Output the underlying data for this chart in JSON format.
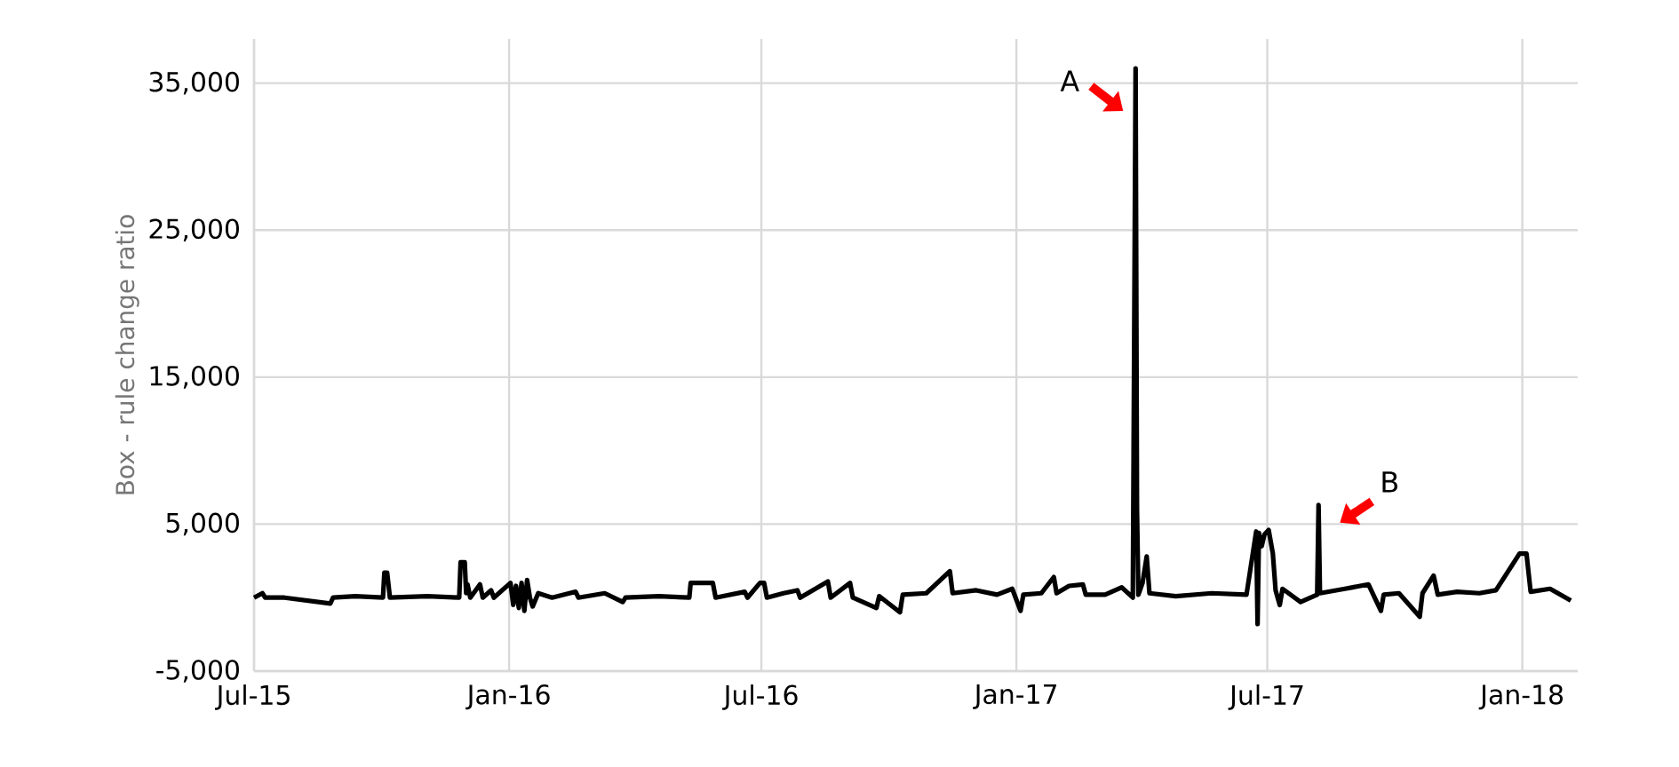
{
  "chart_data": {
    "type": "line",
    "ylabel": "Box - rule change ratio",
    "color": "#000000",
    "xlim": [
      "2015-07-01",
      "2018-02-10"
    ],
    "ylim": [
      -5000,
      38000
    ],
    "xticks": [
      {
        "value": "2015-07-01",
        "label": "Jul-15"
      },
      {
        "value": "2016-01-01",
        "label": "Jan-16"
      },
      {
        "value": "2016-07-01",
        "label": "Jul-16"
      },
      {
        "value": "2017-01-01",
        "label": "Jan-17"
      },
      {
        "value": "2017-07-01",
        "label": "Jul-17"
      },
      {
        "value": "2018-01-01",
        "label": "Jan-18"
      }
    ],
    "yticks": [
      {
        "value": -5000,
        "label": "-5,000"
      },
      {
        "value": 5000,
        "label": "5,000"
      },
      {
        "value": 15000,
        "label": "15,000"
      },
      {
        "value": 25000,
        "label": "25,000"
      },
      {
        "value": 35000,
        "label": "35,000"
      }
    ],
    "grid": true,
    "marker": "none",
    "line_style": "solid",
    "x": [
      "2015-07-01",
      "2015-07-07",
      "2015-07-09",
      "2015-07-23",
      "2015-08-25",
      "2015-08-27",
      "2015-09-12",
      "2015-10-02",
      "2015-10-03",
      "2015-10-05",
      "2015-10-07",
      "2015-11-03",
      "2015-11-26",
      "2015-11-27",
      "2015-11-30",
      "2015-12-01",
      "2015-12-02",
      "2015-12-04",
      "2015-12-11",
      "2015-12-13",
      "2015-12-19",
      "2015-12-21",
      "2016-01-02",
      "2016-01-04",
      "2016-01-06",
      "2016-01-08",
      "2016-01-10",
      "2016-01-12",
      "2016-01-14",
      "2016-01-16",
      "2016-01-18",
      "2016-01-22",
      "2016-02-01",
      "2016-02-18",
      "2016-02-20",
      "2016-03-10",
      "2016-03-23",
      "2016-03-25",
      "2016-04-18",
      "2016-05-10",
      "2016-05-11",
      "2016-05-27",
      "2016-05-29",
      "2016-06-19",
      "2016-06-21",
      "2016-06-30",
      "2016-07-03",
      "2016-07-05",
      "2016-07-17",
      "2016-07-27",
      "2016-07-29",
      "2016-08-18",
      "2016-08-20",
      "2016-09-03",
      "2016-09-05",
      "2016-09-22",
      "2016-09-24",
      "2016-10-09",
      "2016-10-11",
      "2016-10-28",
      "2016-11-14",
      "2016-11-16",
      "2016-12-03",
      "2016-12-18",
      "2016-12-29",
      "2017-01-04",
      "2017-01-06",
      "2017-01-19",
      "2017-01-28",
      "2017-01-30",
      "2017-02-08",
      "2017-02-18",
      "2017-02-20",
      "2017-03-06",
      "2017-03-18",
      "2017-03-26",
      "2017-03-27",
      "2017-03-28",
      "2017-03-29",
      "2017-03-30",
      "2017-04-02",
      "2017-04-05",
      "2017-04-07",
      "2017-04-26",
      "2017-05-22",
      "2017-06-16",
      "2017-06-23",
      "2017-06-24",
      "2017-06-25",
      "2017-06-27",
      "2017-06-29",
      "2017-07-02",
      "2017-07-05",
      "2017-07-07",
      "2017-07-10",
      "2017-07-12",
      "2017-07-25",
      "2017-08-06",
      "2017-08-07",
      "2017-08-08",
      "2017-08-26",
      "2017-09-12",
      "2017-09-21",
      "2017-09-23",
      "2017-10-04",
      "2017-10-19",
      "2017-10-21",
      "2017-10-29",
      "2017-11-01",
      "2017-11-15",
      "2017-12-01",
      "2017-12-13",
      "2017-12-30",
      "2018-01-04",
      "2018-01-07",
      "2018-01-21",
      "2018-02-05"
    ],
    "values": [
      0,
      300,
      0,
      0,
      -400,
      0,
      100,
      0,
      1700,
      1700,
      0,
      100,
      0,
      2400,
      2400,
      300,
      900,
      0,
      900,
      0,
      500,
      0,
      1000,
      -500,
      800,
      -700,
      1000,
      -900,
      1200,
      0,
      -600,
      300,
      0,
      400,
      0,
      300,
      -300,
      0,
      100,
      0,
      1000,
      1000,
      0,
      400,
      0,
      1000,
      1000,
      0,
      300,
      500,
      0,
      1100,
      0,
      1000,
      0,
      -700,
      100,
      -1000,
      200,
      300,
      1800,
      300,
      500,
      200,
      600,
      -900,
      200,
      300,
      1400,
      300,
      800,
      900,
      200,
      200,
      700,
      0,
      18000,
      36000,
      6000,
      200,
      1000,
      2800,
      300,
      100,
      300,
      200,
      4500,
      -1800,
      4400,
      3500,
      4300,
      4600,
      3000,
      500,
      -500,
      600,
      -300,
      200,
      6300,
      300,
      600,
      900,
      -900,
      200,
      300,
      -1300,
      300,
      1500,
      200,
      400,
      300,
      500,
      3000,
      3000,
      400,
      600,
      -200
    ],
    "annotations": [
      {
        "text": "A",
        "x": "2017-03-28",
        "y": 36000
      },
      {
        "text": "B",
        "x": "2017-08-07",
        "y": 6300
      }
    ]
  }
}
